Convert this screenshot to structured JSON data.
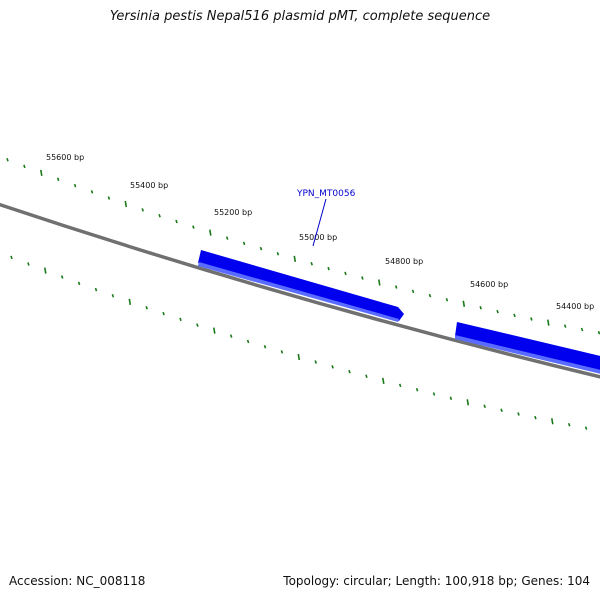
{
  "title": "Yersinia pestis Nepal516 plasmid pMT, complete sequence",
  "accession_text": "Accession: NC_008118",
  "summary_text": "Topology: circular; Length: 100,918 bp; Genes: 104",
  "colors": {
    "backbone": "#707070",
    "tick": "#1a7a1a",
    "gene": "#0000ee",
    "gene_label": "#0000cc",
    "label": "#111111"
  },
  "position_labels": [
    "55600 bp",
    "55400 bp",
    "55200 bp",
    "55000 bp",
    "54800 bp",
    "54600 bp",
    "54400 bp"
  ],
  "genes": [
    {
      "name": "YPN_MT0056",
      "labeled": true
    },
    {
      "name": "",
      "labeled": false
    }
  ]
}
